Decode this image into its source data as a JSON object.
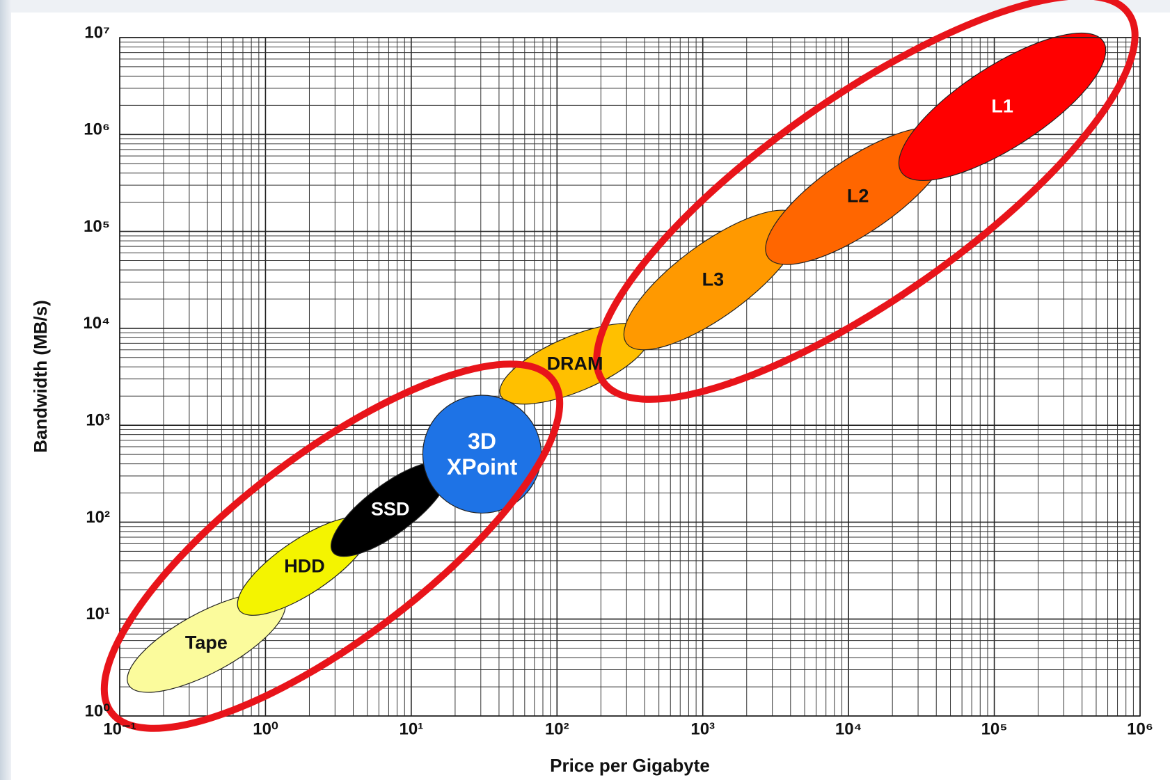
{
  "chart_data": {
    "type": "ellipse",
    "xlabel": "Price per Gigabyte",
    "ylabel": "Bandwidth (MB/s)",
    "xscale": "log",
    "yscale": "log",
    "grid": true,
    "xlim": [
      0.1,
      1000000
    ],
    "ylim": [
      1,
      10000000
    ],
    "xticks": [
      {
        "value": 0.1,
        "label": "10⁻¹"
      },
      {
        "value": 1,
        "label": "10⁰"
      },
      {
        "value": 10,
        "label": "10¹"
      },
      {
        "value": 100,
        "label": "10²"
      },
      {
        "value": 1000,
        "label": "10³"
      },
      {
        "value": 10000,
        "label": "10⁴"
      },
      {
        "value": 100000,
        "label": "10⁵"
      },
      {
        "value": 1000000,
        "label": "10⁶"
      }
    ],
    "yticks": [
      {
        "value": 1,
        "label": "10⁰"
      },
      {
        "value": 10,
        "label": "10¹"
      },
      {
        "value": 100,
        "label": "10²"
      },
      {
        "value": 1000,
        "label": "10³"
      },
      {
        "value": 10000,
        "label": "10⁴"
      },
      {
        "value": 100000,
        "label": "10⁵"
      },
      {
        "value": 1000000,
        "label": "10⁶"
      },
      {
        "value": 10000000,
        "label": "10⁷"
      }
    ],
    "series": [
      {
        "name": "Tape",
        "color": "#fbfb9c",
        "x": [
          0.115,
          1.34
        ],
        "y": [
          2.1,
          15.5
        ]
      },
      {
        "name": "HDD",
        "color": "#f4f400",
        "x": [
          0.66,
          5.2
        ],
        "y": [
          12.4,
          100
        ]
      },
      {
        "name": "SSD",
        "color": "#000000",
        "x": [
          2.9,
          17.8
        ],
        "y": [
          49,
          380
        ]
      },
      {
        "name": "DRAM",
        "color": "#ffc000",
        "x": [
          41,
          430
        ],
        "y": [
          2040,
          9100
        ]
      },
      {
        "name": "L3",
        "color": "#ff9900",
        "x": [
          300,
          4600
        ],
        "y": [
          7000,
          142000
        ]
      },
      {
        "name": "L2",
        "color": "#ff6600",
        "x": [
          2800,
          48000
        ],
        "y": [
          54000,
          1000000
        ]
      },
      {
        "name": "L1",
        "color": "#ff0000",
        "x": [
          23000,
          560000
        ],
        "y": [
          410000,
          9100000
        ]
      },
      {
        "name": "3D XPoint",
        "color": "#1e73e6",
        "shape": "circle",
        "x": [
          12,
          78
        ],
        "y": [
          124,
          2040
        ]
      }
    ]
  }
}
